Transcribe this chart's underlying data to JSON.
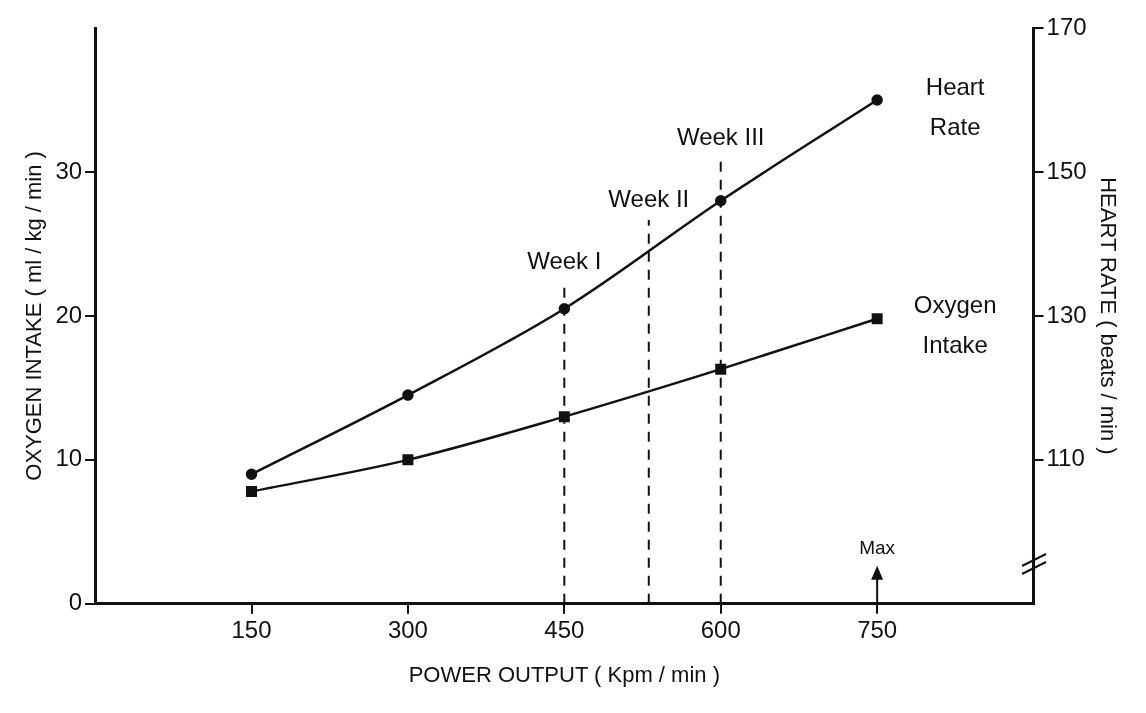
{
  "chart_data": {
    "type": "line",
    "xlabel": "POWER OUTPUT ( Kpm / min )",
    "ylabel": "OXYGEN INTAKE ( ml / kg / min )",
    "y2label": "HEART RATE ( beats / min )",
    "x": [
      150,
      300,
      450,
      600,
      750
    ],
    "series": [
      {
        "name": "Heart Rate",
        "color": "#111111",
        "values": [
          108,
          119,
          131,
          146,
          160
        ],
        "axis": "y2",
        "marker": "circle"
      },
      {
        "name": "Oxygen Intake",
        "color": "#111111",
        "values": [
          7.8,
          10,
          13,
          16.3,
          19.8
        ],
        "marker": "square"
      }
    ],
    "xlim": [
      0,
      900
    ],
    "xticks": [
      150,
      300,
      450,
      600,
      750
    ],
    "ylim": [
      0,
      40
    ],
    "yticks": [
      0,
      10,
      20,
      30
    ],
    "y2lim": [
      90,
      170
    ],
    "y2ticks": [
      110,
      130,
      150,
      170
    ],
    "ref_lines": [
      {
        "axis": "x",
        "value": 450,
        "label": "Week I",
        "line_style": "dashed"
      },
      {
        "axis": "x",
        "value": 531,
        "label": "Week II",
        "line_style": "dashed"
      },
      {
        "axis": "x",
        "value": 600,
        "label": "Week III",
        "line_style": "dashed"
      }
    ],
    "annotations": [
      "Max"
    ],
    "grid": false,
    "legend": false,
    "line_style": "solid"
  }
}
